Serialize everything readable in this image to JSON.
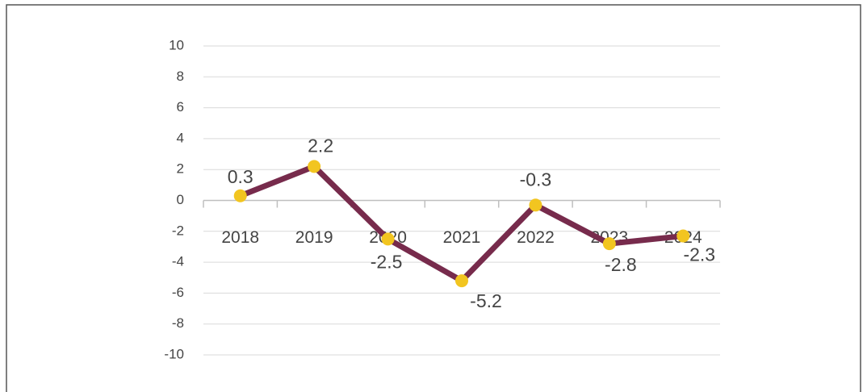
{
  "chart_data": {
    "type": "line",
    "categories": [
      "2018",
      "2019",
      "2020",
      "2021",
      "2022",
      "2023",
      "2024"
    ],
    "series": [
      {
        "name": null,
        "color": "#772b4c",
        "marker_color": "#f2c520",
        "values": [
          0.3,
          2.2,
          -2.5,
          -5.2,
          -0.3,
          -2.8,
          -2.3
        ]
      }
    ],
    "ylim": [
      -10,
      10
    ],
    "yticks": [
      -10,
      -8,
      -6,
      -4,
      -2,
      0,
      2,
      4,
      6,
      8,
      10
    ],
    "grid": true
  }
}
